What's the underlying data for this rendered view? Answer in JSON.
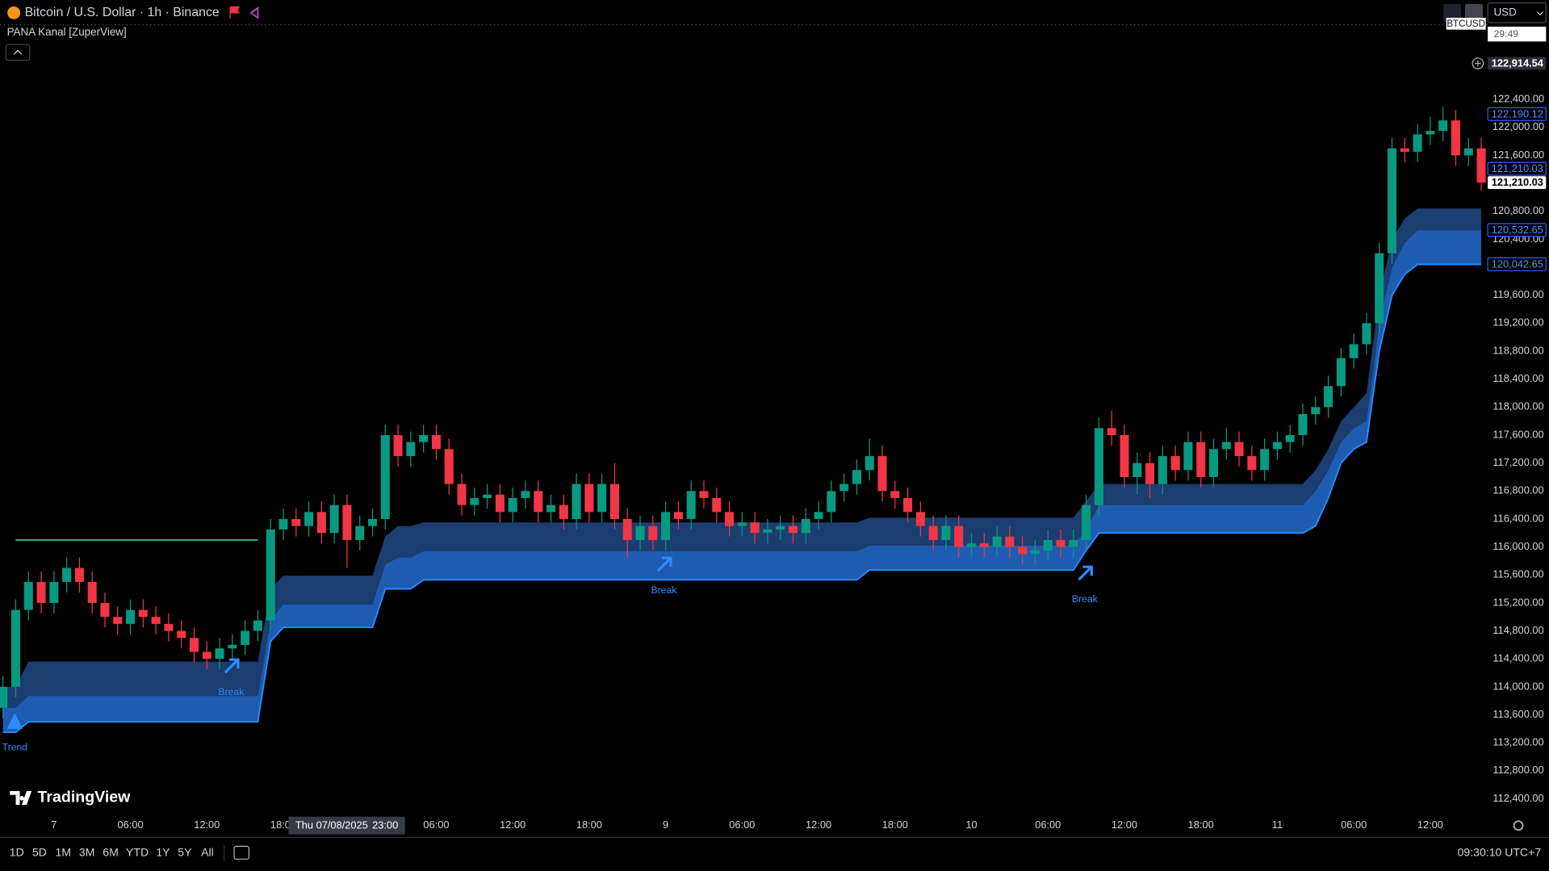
{
  "header": {
    "symbol": "Bitcoin / U.S. Dollar · 1h · Binance",
    "indicator": "PANA Kanal [ZuperView]",
    "currency": "USD",
    "countdown": "29:49",
    "ticker": "BTCUSD"
  },
  "chart_data": {
    "type": "candlestick",
    "open": [
      113700,
      114000,
      115100,
      115500,
      115200,
      115500,
      115700,
      115500,
      115200,
      115000,
      114900,
      115100,
      115000,
      114900,
      114800,
      114700,
      114500,
      114400,
      114550,
      114600,
      114800,
      114950,
      116250,
      116400,
      116300,
      116500,
      116200,
      116600,
      116100,
      116300,
      116400,
      117600,
      117300,
      117500,
      117600,
      117400,
      116900,
      116600,
      116700,
      116750,
      116500,
      116700,
      116800,
      116500,
      116600,
      116400,
      116900,
      116500,
      116900,
      116400,
      116100,
      116300,
      116100,
      116500,
      116400,
      116800,
      116700,
      116500,
      116300,
      116350,
      116200,
      116250,
      116300,
      116200,
      116400,
      116500,
      116800,
      116900,
      117100,
      117300,
      116800,
      116700,
      116500,
      116300,
      116100,
      116300,
      116000,
      116050,
      116000,
      116150,
      116000,
      115900,
      115950,
      116100,
      116000,
      116100,
      116600,
      117700,
      117600,
      117000,
      117200,
      116900,
      117300,
      117100,
      117500,
      117000,
      117400,
      117500,
      117300,
      117100,
      117400,
      117500,
      117600,
      117900,
      118000,
      118300,
      118700,
      118900,
      119200,
      120200,
      121700,
      121650,
      121900,
      121950,
      122100,
      121600,
      121700
    ],
    "high": [
      114150,
      115250,
      115650,
      115650,
      115650,
      115850,
      115850,
      115650,
      115350,
      115150,
      115250,
      115250,
      115150,
      115050,
      114950,
      114850,
      114650,
      114700,
      114750,
      114950,
      115100,
      116400,
      116550,
      116550,
      116650,
      116650,
      116750,
      116750,
      116450,
      116550,
      117750,
      117750,
      117650,
      117750,
      117750,
      117550,
      117050,
      116850,
      116900,
      116900,
      116850,
      116950,
      116950,
      116750,
      116750,
      117050,
      117050,
      117050,
      117200,
      116550,
      116450,
      116450,
      116650,
      116650,
      116950,
      116950,
      116850,
      116650,
      116500,
      116500,
      116400,
      116450,
      116450,
      116550,
      116650,
      116950,
      117050,
      117250,
      117550,
      117450,
      116950,
      116850,
      116650,
      116450,
      116450,
      116450,
      116200,
      116200,
      116300,
      116300,
      116150,
      116100,
      116250,
      116250,
      116250,
      116750,
      117850,
      117950,
      117750,
      117350,
      117350,
      117450,
      117450,
      117650,
      117650,
      117550,
      117700,
      117650,
      117450,
      117550,
      117650,
      117750,
      118050,
      118150,
      118450,
      118850,
      119050,
      119350,
      120350,
      121850,
      121850,
      122050,
      122150,
      122300,
      122250,
      121850,
      121850
    ],
    "low": [
      113550,
      113850,
      114950,
      115050,
      115050,
      115350,
      115350,
      115050,
      114850,
      114750,
      114750,
      114850,
      114750,
      114650,
      114550,
      114350,
      114250,
      114250,
      114400,
      114450,
      114650,
      114800,
      116100,
      116150,
      116150,
      116050,
      116050,
      115700,
      115950,
      116150,
      116250,
      117150,
      117150,
      117350,
      117250,
      116750,
      116450,
      116450,
      116550,
      116350,
      116350,
      116550,
      116350,
      116350,
      116250,
      116250,
      116350,
      116350,
      116250,
      115850,
      115950,
      115950,
      115950,
      116250,
      116250,
      116550,
      116350,
      116150,
      116150,
      116050,
      116050,
      116100,
      116050,
      116050,
      116250,
      116350,
      116650,
      116750,
      116950,
      116650,
      116550,
      116350,
      116150,
      115950,
      115950,
      115850,
      115850,
      115850,
      115850,
      115850,
      115750,
      115750,
      115800,
      115850,
      115850,
      115950,
      116450,
      117450,
      116850,
      116750,
      116700,
      116750,
      116950,
      116950,
      116850,
      116850,
      117250,
      117150,
      116950,
      116950,
      117250,
      117350,
      117450,
      117750,
      117850,
      118150,
      118550,
      118750,
      119050,
      120050,
      121500,
      121500,
      121750,
      121800,
      121450,
      121450,
      121100
    ],
    "close": [
      114000,
      115100,
      115500,
      115200,
      115500,
      115700,
      115500,
      115200,
      115000,
      114900,
      115100,
      115000,
      114900,
      114800,
      114700,
      114500,
      114400,
      114550,
      114600,
      114800,
      114950,
      116250,
      116400,
      116300,
      116500,
      116200,
      116600,
      116100,
      116300,
      116400,
      117600,
      117300,
      117500,
      117600,
      117400,
      116900,
      116600,
      116700,
      116750,
      116500,
      116700,
      116800,
      116500,
      116600,
      116400,
      116900,
      116500,
      116900,
      116400,
      116100,
      116300,
      116100,
      116500,
      116400,
      116800,
      116700,
      116500,
      116300,
      116350,
      116200,
      116250,
      116300,
      116200,
      116400,
      116500,
      116800,
      116900,
      117100,
      117300,
      116800,
      116700,
      116500,
      116300,
      116100,
      116300,
      116000,
      116050,
      116000,
      116150,
      116000,
      115900,
      115950,
      116100,
      116000,
      116100,
      116600,
      117700,
      117600,
      117000,
      117200,
      116900,
      117300,
      117100,
      117500,
      117000,
      117400,
      117500,
      117300,
      117100,
      117400,
      117500,
      117600,
      117900,
      118000,
      118300,
      118700,
      118900,
      119200,
      120200,
      121700,
      121650,
      121900,
      121950,
      122100,
      121600,
      121700,
      121210
    ],
    "up_color": "#089981",
    "down_color": "#f23645",
    "channel": {
      "top": [
        114000,
        114000,
        114360,
        114360,
        114360,
        114360,
        114360,
        114360,
        114360,
        114360,
        114360,
        114360,
        114360,
        114360,
        114360,
        114360,
        114360,
        114360,
        114360,
        114360,
        114360,
        115400,
        115590,
        115590,
        115590,
        115590,
        115590,
        115590,
        115590,
        115590,
        116150,
        116300,
        116300,
        116350,
        116350,
        116350,
        116350,
        116350,
        116350,
        116350,
        116350,
        116350,
        116350,
        116350,
        116350,
        116350,
        116350,
        116350,
        116350,
        116350,
        116350,
        116350,
        116350,
        116350,
        116350,
        116350,
        116350,
        116350,
        116350,
        116350,
        116350,
        116350,
        116350,
        116350,
        116350,
        116350,
        116350,
        116350,
        116420,
        116420,
        116420,
        116420,
        116420,
        116420,
        116420,
        116420,
        116420,
        116420,
        116420,
        116420,
        116420,
        116420,
        116420,
        116420,
        116420,
        116650,
        116900,
        116900,
        116900,
        116900,
        116900,
        116900,
        116900,
        116900,
        116900,
        116900,
        116900,
        116900,
        116900,
        116900,
        116900,
        116900,
        116900,
        117100,
        117400,
        117800,
        118000,
        118200,
        119600,
        120400,
        120700,
        120840,
        120840,
        120840,
        120840,
        120840,
        120840
      ],
      "mid": [
        113700,
        113700,
        113870,
        113870,
        113870,
        113870,
        113870,
        113870,
        113870,
        113870,
        113870,
        113870,
        113870,
        113870,
        113870,
        113870,
        113870,
        113870,
        113870,
        113870,
        113870,
        114950,
        115180,
        115180,
        115180,
        115180,
        115180,
        115180,
        115180,
        115180,
        115750,
        115850,
        115850,
        115940,
        115940,
        115940,
        115940,
        115940,
        115940,
        115940,
        115940,
        115940,
        115940,
        115940,
        115940,
        115940,
        115940,
        115940,
        115940,
        115940,
        115940,
        115940,
        115940,
        115940,
        115940,
        115940,
        115940,
        115940,
        115940,
        115940,
        115940,
        115940,
        115940,
        115940,
        115940,
        115940,
        115940,
        115940,
        116020,
        116020,
        116020,
        116020,
        116020,
        116020,
        116020,
        116020,
        116020,
        116020,
        116020,
        116020,
        116020,
        116020,
        116020,
        116020,
        116020,
        116250,
        116600,
        116600,
        116600,
        116600,
        116600,
        116600,
        116600,
        116600,
        116600,
        116600,
        116600,
        116600,
        116600,
        116600,
        116600,
        116600,
        116600,
        116800,
        117100,
        117500,
        117700,
        117800,
        119200,
        120000,
        120350,
        120530,
        120530,
        120530,
        120530,
        120530,
        120530
      ],
      "bottom": [
        113350,
        113350,
        113500,
        113500,
        113500,
        113500,
        113500,
        113500,
        113500,
        113500,
        113500,
        113500,
        113500,
        113500,
        113500,
        113500,
        113500,
        113500,
        113500,
        113500,
        113500,
        114650,
        114850,
        114850,
        114850,
        114850,
        114850,
        114850,
        114850,
        114850,
        115400,
        115400,
        115400,
        115530,
        115530,
        115530,
        115530,
        115530,
        115530,
        115530,
        115530,
        115530,
        115530,
        115530,
        115530,
        115530,
        115530,
        115530,
        115530,
        115530,
        115530,
        115530,
        115530,
        115530,
        115530,
        115530,
        115530,
        115530,
        115530,
        115530,
        115530,
        115530,
        115530,
        115530,
        115530,
        115530,
        115530,
        115530,
        115670,
        115670,
        115670,
        115670,
        115670,
        115670,
        115670,
        115670,
        115670,
        115670,
        115670,
        115670,
        115670,
        115670,
        115670,
        115670,
        115670,
        115950,
        116200,
        116200,
        116200,
        116200,
        116200,
        116200,
        116200,
        116200,
        116200,
        116200,
        116200,
        116200,
        116200,
        116200,
        116200,
        116200,
        116200,
        116300,
        116700,
        117200,
        117400,
        117500,
        118800,
        119600,
        119900,
        120040,
        120040,
        120040,
        120040,
        120040,
        120040
      ],
      "upper_color": "#1b3d70",
      "lower_color": "#1d5cb0",
      "edge_color": "#2d8cff"
    },
    "level_line": {
      "value": 116100,
      "color": "#3ddc84"
    },
    "annotations": [
      "Trend",
      "Break",
      "Break",
      "Break"
    ],
    "annotation_color": "#2d8cff",
    "ylim": [
      112200,
      123800
    ],
    "yticks": [
      {
        "value": 112400,
        "label": "112,400.00"
      },
      {
        "value": 112800,
        "label": "112,800.00"
      },
      {
        "value": 113200,
        "label": "113,200.00"
      },
      {
        "value": 113600,
        "label": "113,600.00"
      },
      {
        "value": 114000,
        "label": "114,000.00"
      },
      {
        "value": 114400,
        "label": "114,400.00"
      },
      {
        "value": 114800,
        "label": "114,800.00"
      },
      {
        "value": 115200,
        "label": "115,200.00"
      },
      {
        "value": 115600,
        "label": "115,600.00"
      },
      {
        "value": 116000,
        "label": "116,000.00"
      },
      {
        "value": 116400,
        "label": "116,400.00"
      },
      {
        "value": 116800,
        "label": "116,800.00"
      },
      {
        "value": 117200,
        "label": "117,200.00"
      },
      {
        "value": 117600,
        "label": "117,600.00"
      },
      {
        "value": 118000,
        "label": "118,000.00"
      },
      {
        "value": 118400,
        "label": "118,400.00"
      },
      {
        "value": 118800,
        "label": "118,800.00"
      },
      {
        "value": 119200,
        "label": "119,200.00"
      },
      {
        "value": 119600,
        "label": "119,600.00"
      },
      {
        "value": 120000,
        "label": "120,000.00"
      },
      {
        "value": 120400,
        "label": "120,400.00"
      },
      {
        "value": 120800,
        "label": "120,800.00"
      },
      {
        "value": 121200,
        "label": "121,200.00"
      },
      {
        "value": 121600,
        "label": "121,600.00"
      },
      {
        "value": 122000,
        "label": "122,000.00"
      },
      {
        "value": 122400,
        "label": "122,400.00"
      }
    ],
    "xticks": [
      {
        "value": 4,
        "label": "7"
      },
      {
        "value": 10,
        "label": "06:00"
      },
      {
        "value": 16,
        "label": "12:00"
      },
      {
        "value": 22,
        "label": "18:00"
      },
      {
        "value": 34,
        "label": "06:00"
      },
      {
        "value": 40,
        "label": "12:00"
      },
      {
        "value": 46,
        "label": "18:00"
      },
      {
        "value": 52,
        "label": "9"
      },
      {
        "value": 58,
        "label": "06:00"
      },
      {
        "value": 64,
        "label": "12:00"
      },
      {
        "value": 70,
        "label": "18:00"
      },
      {
        "value": 76,
        "label": "10"
      },
      {
        "value": 82,
        "label": "06:00"
      },
      {
        "value": 88,
        "label": "12:00"
      },
      {
        "value": 94,
        "label": "18:00"
      },
      {
        "value": 100,
        "label": "11"
      },
      {
        "value": 106,
        "label": "06:00"
      },
      {
        "value": 112,
        "label": "12:00"
      }
    ],
    "crosshair": {
      "date": "Thu 07/08/2025",
      "time": "23:00"
    },
    "price_tags": [
      {
        "value": 122914.54,
        "label": "122,914.54",
        "color": "#2a2e39"
      },
      {
        "value": 122190.12,
        "label": "122,190.12",
        "color": "#2962ff"
      },
      {
        "value": 121210.03,
        "label": "121,210.03",
        "color": "#2962ff"
      },
      {
        "value": 121210.03,
        "label": "121,210.03",
        "color": "#ffffff"
      },
      {
        "value": 120532.65,
        "label": "120,532.65",
        "color": "#2962ff"
      },
      {
        "value": 120042.65,
        "label": "120,042.65",
        "color": "#2962ff"
      }
    ]
  },
  "footer": {
    "ranges": [
      "1D",
      "5D",
      "1M",
      "3M",
      "6M",
      "YTD",
      "1Y",
      "5Y",
      "All"
    ],
    "clock": "09:30:10 UTC+7",
    "brand": "TradingView"
  }
}
